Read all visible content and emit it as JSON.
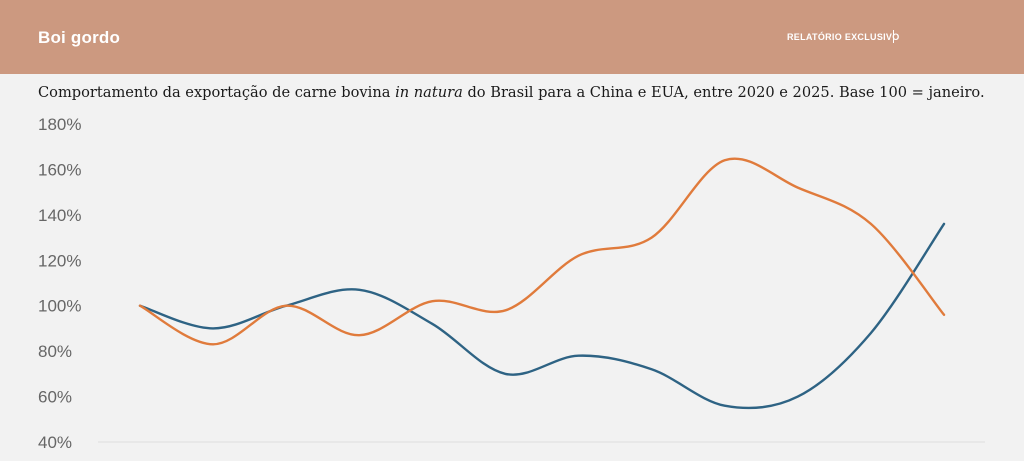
{
  "header": {
    "brand": "Boi gordo",
    "link_label": "RELATÓRIO EXCLUSIVO"
  },
  "title": {
    "before": "Comportamento da exportação de carne bovina ",
    "italic": "in natura",
    "after": " do Brasil para a China e EUA, entre 2020 e 2025. Base 100 = janeiro."
  },
  "colors": {
    "header_bg": "#cc9980",
    "series_blue": "#2e6384",
    "series_orange": "#e07b3c"
  },
  "chart_data": {
    "type": "line",
    "title": "Comportamento da exportação de carne bovina in natura do Brasil para a China e EUA, entre 2020 e 2025. Base 100 = janeiro.",
    "xlabel": "",
    "ylabel": "",
    "yticks": [
      "40%",
      "60%",
      "80%",
      "100%",
      "120%",
      "140%",
      "160%",
      "180%"
    ],
    "ylim": [
      40,
      180
    ],
    "grid": false,
    "x_points": 12,
    "series": [
      {
        "color": "#2e6384",
        "values": [
          100,
          90,
          100,
          107,
          92,
          70,
          78,
          72,
          56,
          60,
          88,
          136
        ]
      },
      {
        "color": "#e07b3c",
        "values": [
          100,
          83,
          100,
          87,
          102,
          98,
          122,
          130,
          164,
          152,
          136,
          96
        ]
      }
    ]
  }
}
